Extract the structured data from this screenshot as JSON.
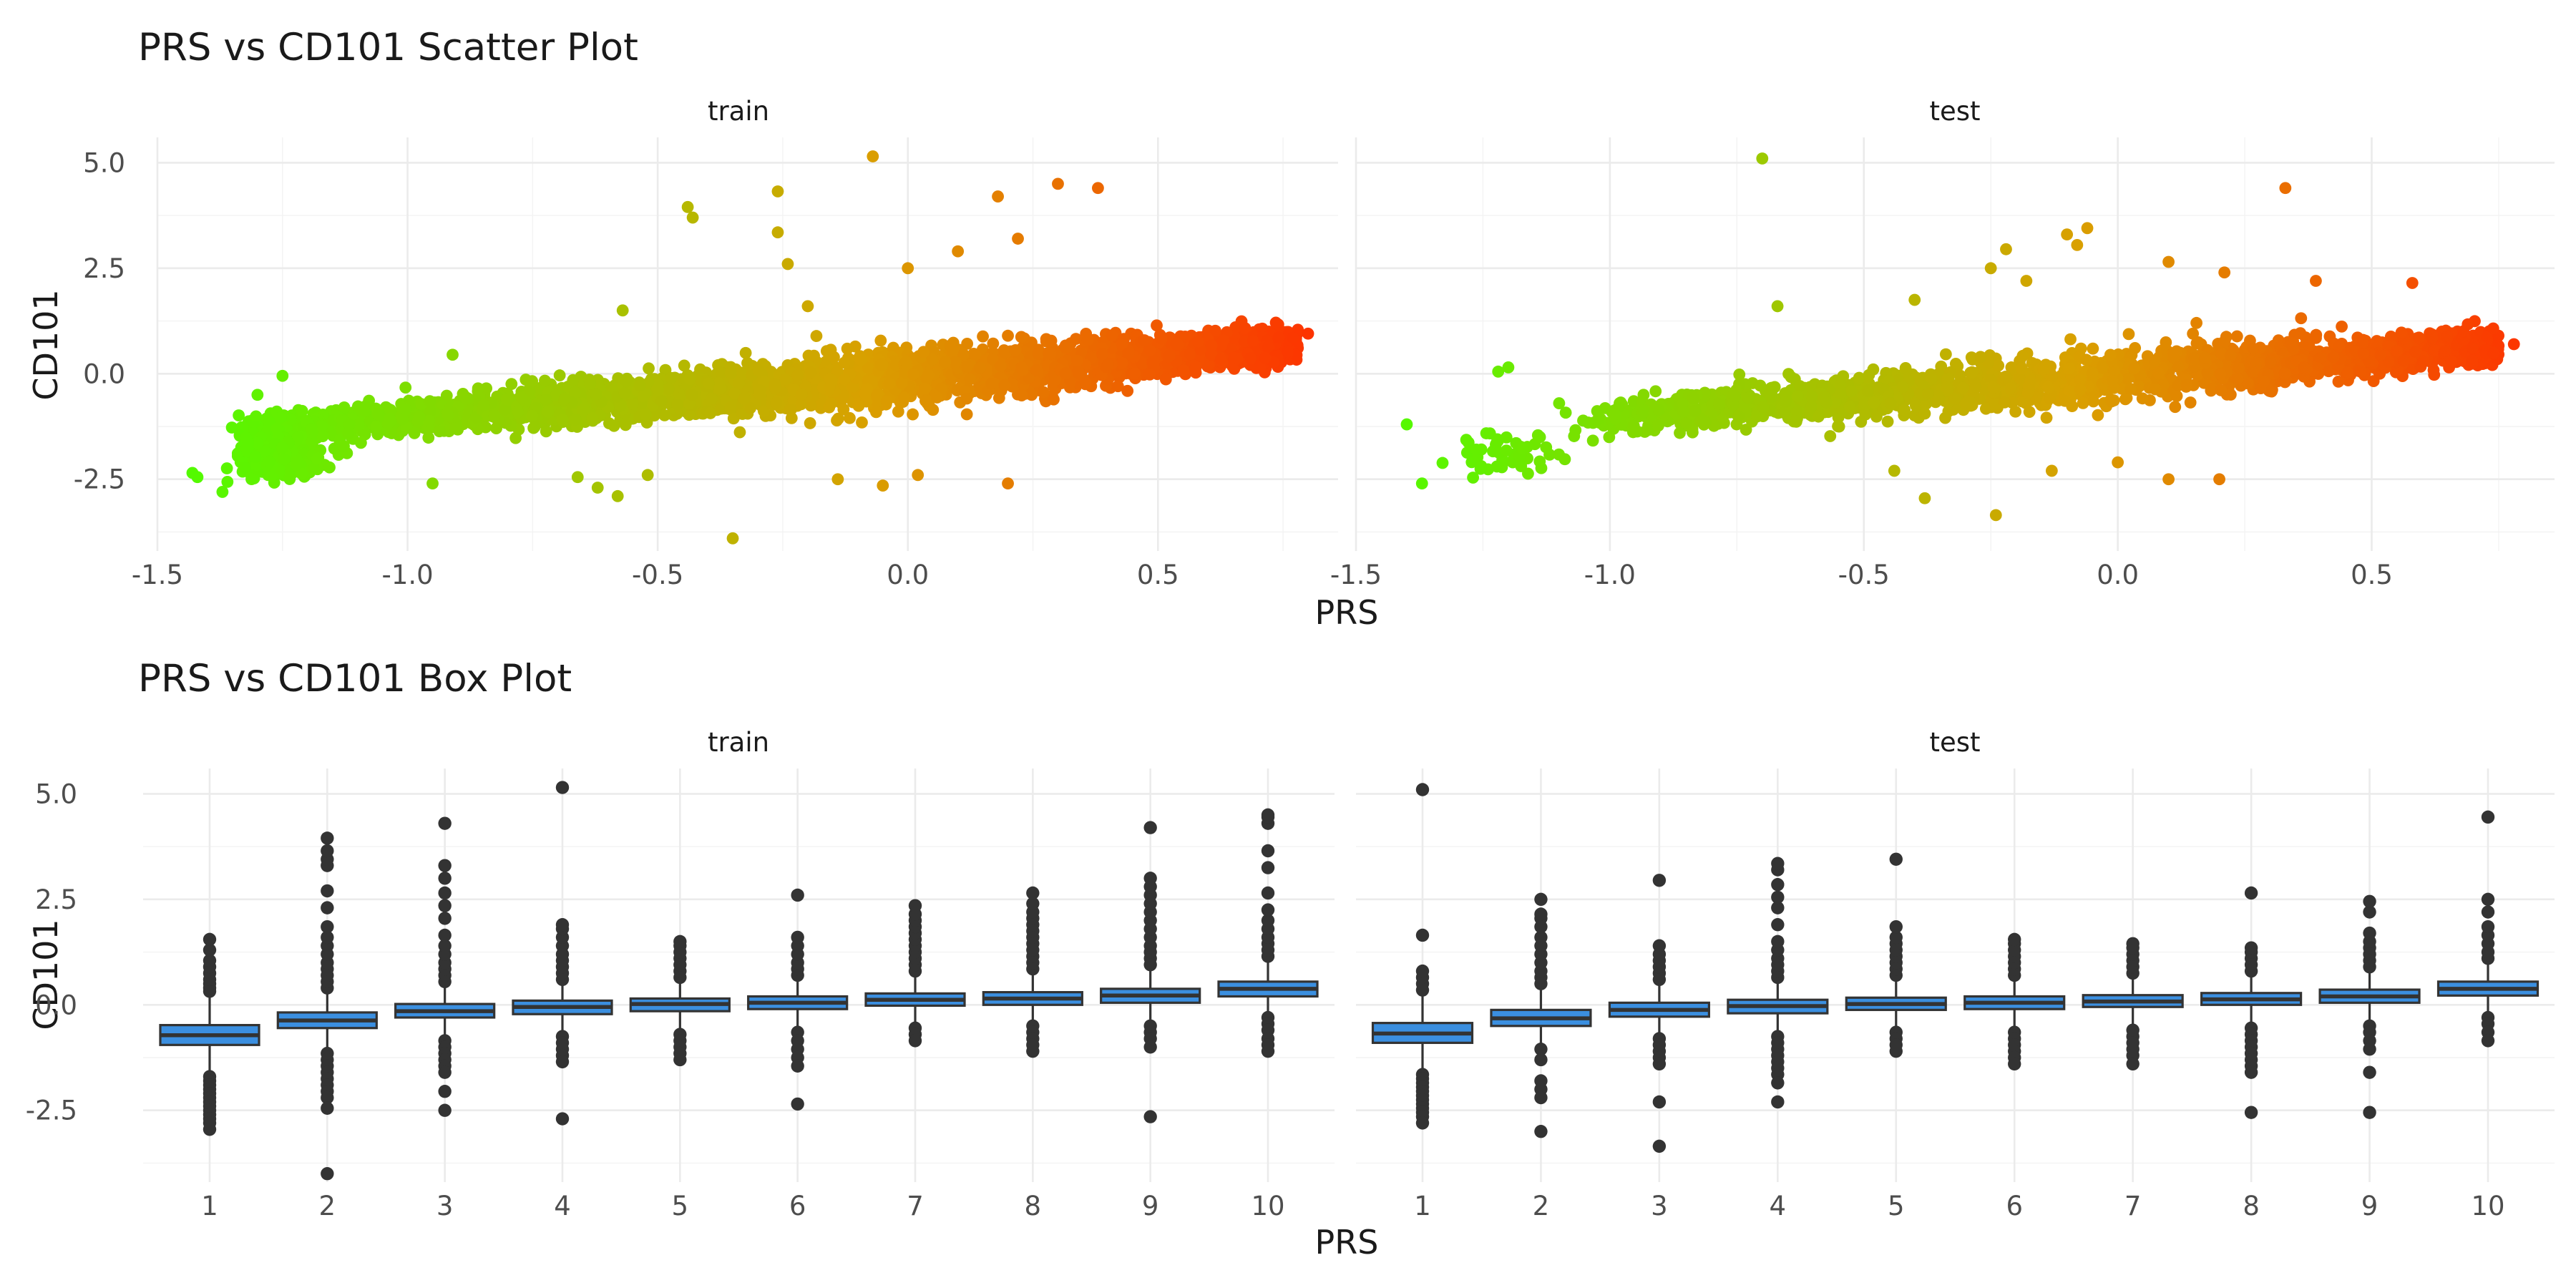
{
  "chart_data": [
    {
      "type": "scatter",
      "title": "PRS vs CD101 Scatter Plot",
      "xlabel": "PRS",
      "ylabel": "CD101",
      "xlim": [
        -1.5,
        0.86
      ],
      "ylim": [
        -4.2,
        5.6
      ],
      "x_ticks": [
        -1.5,
        -1.0,
        -0.5,
        0.0,
        0.5
      ],
      "x_tick_labels": [
        "-1.5",
        "-1.0",
        "-0.5",
        "0.0",
        "0.5"
      ],
      "y_ticks": [
        -2.5,
        0.0,
        2.5,
        5.0
      ],
      "y_tick_labels": [
        "-2.5",
        "0.0",
        "2.5",
        "5.0"
      ],
      "grid": true,
      "color_gradient": {
        "low": "#4cff00",
        "mid": "#d9a000",
        "high": "#ff2d00"
      },
      "panels": [
        {
          "name": "train",
          "trend": {
            "slope": 0.95,
            "intercept": -0.06
          },
          "dense_x_range": [
            -1.3,
            0.78
          ],
          "cluster": {
            "x": -1.25,
            "y": -1.95
          },
          "outliers": [
            {
              "x": -0.07,
              "y": 5.15
            },
            {
              "x": 0.3,
              "y": 4.5
            },
            {
              "x": 0.38,
              "y": 4.4
            },
            {
              "x": -0.26,
              "y": 4.32
            },
            {
              "x": 0.18,
              "y": 4.2
            },
            {
              "x": -0.44,
              "y": 3.95
            },
            {
              "x": -0.43,
              "y": 3.7
            },
            {
              "x": -0.26,
              "y": 3.35
            },
            {
              "x": -0.24,
              "y": 2.6
            },
            {
              "x": 0.0,
              "y": 2.5
            },
            {
              "x": 0.1,
              "y": 2.9
            },
            {
              "x": 0.22,
              "y": 3.2
            },
            {
              "x": -0.35,
              "y": -3.9
            },
            {
              "x": -0.58,
              "y": -2.9
            },
            {
              "x": -0.62,
              "y": -2.7
            },
            {
              "x": -0.52,
              "y": -2.4
            },
            {
              "x": -0.66,
              "y": -2.45
            },
            {
              "x": -0.05,
              "y": -2.65
            },
            {
              "x": 0.2,
              "y": -2.6
            },
            {
              "x": -0.95,
              "y": -2.6
            },
            {
              "x": -0.14,
              "y": -2.5
            },
            {
              "x": 0.02,
              "y": -2.4
            },
            {
              "x": -1.37,
              "y": -2.8
            },
            {
              "x": -1.42,
              "y": -2.45
            },
            {
              "x": -1.43,
              "y": -2.35
            },
            {
              "x": -1.25,
              "y": -0.05
            },
            {
              "x": -1.3,
              "y": -0.5
            },
            {
              "x": 0.8,
              "y": 0.95
            },
            {
              "x": 0.77,
              "y": 0.85
            },
            {
              "x": -0.91,
              "y": 0.45
            },
            {
              "x": -0.57,
              "y": 1.5
            },
            {
              "x": -0.2,
              "y": 1.6
            }
          ]
        },
        {
          "name": "test",
          "trend": {
            "slope": 0.95,
            "intercept": -0.06
          },
          "dense_x_range": [
            -1.0,
            0.75
          ],
          "cluster": {
            "x": -1.22,
            "y": -1.9
          },
          "outliers": [
            {
              "x": -0.7,
              "y": 5.1
            },
            {
              "x": 0.33,
              "y": 4.4
            },
            {
              "x": -0.06,
              "y": 3.45
            },
            {
              "x": -0.1,
              "y": 3.3
            },
            {
              "x": -0.08,
              "y": 3.05
            },
            {
              "x": -0.22,
              "y": 2.95
            },
            {
              "x": -0.25,
              "y": 2.5
            },
            {
              "x": 0.1,
              "y": 2.65
            },
            {
              "x": 0.21,
              "y": 2.4
            },
            {
              "x": 0.58,
              "y": 2.15
            },
            {
              "x": 0.39,
              "y": 2.2
            },
            {
              "x": -0.18,
              "y": 2.2
            },
            {
              "x": -0.4,
              "y": 1.75
            },
            {
              "x": -0.67,
              "y": 1.6
            },
            {
              "x": -0.24,
              "y": -3.35
            },
            {
              "x": -0.38,
              "y": -2.95
            },
            {
              "x": -0.44,
              "y": -2.3
            },
            {
              "x": 0.2,
              "y": -2.5
            },
            {
              "x": 0.1,
              "y": -2.5
            },
            {
              "x": 0.0,
              "y": -2.1
            },
            {
              "x": -0.13,
              "y": -2.3
            },
            {
              "x": -1.37,
              "y": -2.6
            },
            {
              "x": -1.4,
              "y": -1.2
            },
            {
              "x": -1.22,
              "y": 0.05
            },
            {
              "x": -1.2,
              "y": 0.15
            },
            {
              "x": -1.1,
              "y": -0.7
            },
            {
              "x": 0.78,
              "y": 0.7
            },
            {
              "x": 0.74,
              "y": 0.5
            }
          ]
        }
      ]
    },
    {
      "type": "box",
      "title": "PRS vs CD101 Box Plot",
      "xlabel": "PRS",
      "ylabel": "CD101",
      "categories": [
        "1",
        "2",
        "3",
        "4",
        "5",
        "6",
        "7",
        "8",
        "9",
        "10"
      ],
      "ylim": [
        -4.2,
        5.6
      ],
      "y_ticks": [
        -2.5,
        0.0,
        2.5,
        5.0
      ],
      "y_tick_labels": [
        "-2.5",
        "0.0",
        "2.5",
        "5.0"
      ],
      "grid": true,
      "box_fill": "#3b8fe0",
      "box_line": "#333333",
      "outlier_color": "#333333",
      "panels": [
        {
          "name": "train",
          "boxes": [
            {
              "q1": -0.95,
              "median": -0.72,
              "q3": -0.48,
              "whisker_low": -1.6,
              "whisker_high": 0.22,
              "outliers_high": [
                0.32,
                0.4,
                0.5,
                0.6,
                0.75,
                0.9,
                1.05,
                1.3,
                1.55
              ],
              "outliers_low": [
                -1.7,
                -1.8,
                -1.9,
                -2.0,
                -2.1,
                -2.2,
                -2.3,
                -2.4,
                -2.5,
                -2.6,
                -2.7,
                -2.8,
                -2.95
              ]
            },
            {
              "q1": -0.55,
              "median": -0.37,
              "q3": -0.18,
              "whisker_low": -1.05,
              "whisker_high": 0.3,
              "outliers_high": [
                0.4,
                0.55,
                0.7,
                0.85,
                1.0,
                1.2,
                1.4,
                1.6,
                1.85,
                2.3,
                2.7,
                3.3,
                3.45,
                3.65,
                3.95
              ],
              "outliers_low": [
                -1.15,
                -1.3,
                -1.45,
                -1.6,
                -1.75,
                -1.9,
                -2.05,
                -2.2,
                -2.45,
                -4.0
              ]
            },
            {
              "q1": -0.3,
              "median": -0.15,
              "q3": 0.02,
              "whisker_low": -0.75,
              "whisker_high": 0.45,
              "outliers_high": [
                0.55,
                0.7,
                0.85,
                1.0,
                1.2,
                1.4,
                1.65,
                2.05,
                2.35,
                2.65,
                3.0,
                3.3,
                4.3
              ],
              "outliers_low": [
                -0.85,
                -1.0,
                -1.15,
                -1.3,
                -1.45,
                -1.6,
                -2.05,
                -2.5
              ]
            },
            {
              "q1": -0.22,
              "median": -0.05,
              "q3": 0.1,
              "whisker_low": -0.65,
              "whisker_high": 0.5,
              "outliers_high": [
                0.6,
                0.75,
                0.9,
                1.05,
                1.2,
                1.4,
                1.6,
                1.8,
                1.9,
                5.15
              ],
              "outliers_low": [
                -0.75,
                -0.9,
                -1.05,
                -1.2,
                -1.35,
                -2.7
              ]
            },
            {
              "q1": -0.15,
              "median": 0.02,
              "q3": 0.15,
              "whisker_low": -0.58,
              "whisker_high": 0.55,
              "outliers_high": [
                0.65,
                0.8,
                0.95,
                1.1,
                1.25,
                1.4,
                1.5
              ],
              "outliers_low": [
                -0.7,
                -0.85,
                -1.0,
                -1.15,
                -1.3
              ]
            },
            {
              "q1": -0.1,
              "median": 0.05,
              "q3": 0.2,
              "whisker_low": -0.52,
              "whisker_high": 0.6,
              "outliers_high": [
                0.7,
                0.85,
                1.0,
                1.2,
                1.4,
                1.6,
                2.6
              ],
              "outliers_low": [
                -0.65,
                -0.85,
                -1.05,
                -1.25,
                -1.45,
                -2.35
              ]
            },
            {
              "q1": -0.02,
              "median": 0.12,
              "q3": 0.27,
              "whisker_low": -0.42,
              "whisker_high": 0.7,
              "outliers_high": [
                0.8,
                0.95,
                1.1,
                1.25,
                1.4,
                1.55,
                1.7,
                1.85,
                2.0,
                2.15,
                2.35
              ],
              "outliers_low": [
                -0.55,
                -0.7,
                -0.85
              ]
            },
            {
              "q1": 0.0,
              "median": 0.15,
              "q3": 0.3,
              "whisker_low": -0.4,
              "whisker_high": 0.75,
              "outliers_high": [
                0.85,
                1.0,
                1.15,
                1.3,
                1.45,
                1.6,
                1.75,
                1.9,
                2.05,
                2.2,
                2.4,
                2.65
              ],
              "outliers_low": [
                -0.5,
                -0.65,
                -0.8,
                -0.95,
                -1.1
              ]
            },
            {
              "q1": 0.05,
              "median": 0.22,
              "q3": 0.38,
              "whisker_low": -0.35,
              "whisker_high": 0.85,
              "outliers_high": [
                0.95,
                1.1,
                1.25,
                1.4,
                1.6,
                1.8,
                2.0,
                2.2,
                2.4,
                2.6,
                2.8,
                3.0,
                4.2
              ],
              "outliers_low": [
                -0.5,
                -0.65,
                -0.8,
                -1.0,
                -2.65
              ]
            },
            {
              "q1": 0.2,
              "median": 0.38,
              "q3": 0.55,
              "whisker_low": -0.2,
              "whisker_high": 1.0,
              "outliers_high": [
                1.15,
                1.3,
                1.45,
                1.6,
                1.8,
                2.0,
                2.25,
                2.65,
                3.25,
                3.65,
                4.3,
                4.45,
                4.5
              ],
              "outliers_low": [
                -0.3,
                -0.45,
                -0.6,
                -0.8,
                -0.95,
                -1.1
              ]
            }
          ]
        },
        {
          "name": "test",
          "boxes": [
            {
              "q1": -0.9,
              "median": -0.68,
              "q3": -0.43,
              "whisker_low": -1.55,
              "whisker_high": 0.25,
              "outliers_high": [
                0.35,
                0.5,
                0.65,
                0.8,
                1.65,
                5.1
              ],
              "outliers_low": [
                -1.65,
                -1.75,
                -1.85,
                -1.95,
                -2.05,
                -2.15,
                -2.25,
                -2.35,
                -2.45,
                -2.55,
                -2.65,
                -2.8
              ]
            },
            {
              "q1": -0.5,
              "median": -0.32,
              "q3": -0.12,
              "whisker_low": -0.95,
              "whisker_high": 0.4,
              "outliers_high": [
                0.5,
                0.65,
                0.8,
                1.0,
                1.2,
                1.4,
                1.6,
                1.85,
                2.05,
                2.15,
                2.5
              ],
              "outliers_low": [
                -1.05,
                -1.3,
                -1.8,
                -2.0,
                -2.2,
                -3.0
              ]
            },
            {
              "q1": -0.28,
              "median": -0.12,
              "q3": 0.05,
              "whisker_low": -0.7,
              "whisker_high": 0.5,
              "outliers_high": [
                0.6,
                0.75,
                0.9,
                1.05,
                1.2,
                1.4,
                2.95
              ],
              "outliers_low": [
                -0.8,
                -0.95,
                -1.1,
                -1.25,
                -1.4,
                -2.3,
                -3.35
              ]
            },
            {
              "q1": -0.2,
              "median": -0.03,
              "q3": 0.12,
              "whisker_low": -0.62,
              "whisker_high": 0.55,
              "outliers_high": [
                0.65,
                0.8,
                0.95,
                1.1,
                1.3,
                1.5,
                1.9,
                2.3,
                2.55,
                2.85,
                3.2,
                3.35
              ],
              "outliers_low": [
                -0.75,
                -0.9,
                -1.05,
                -1.2,
                -1.35,
                -1.5,
                -1.65,
                -1.85,
                -2.3
              ]
            },
            {
              "q1": -0.12,
              "median": 0.02,
              "q3": 0.17,
              "whisker_low": -0.55,
              "whisker_high": 0.6,
              "outliers_high": [
                0.7,
                0.85,
                1.0,
                1.15,
                1.3,
                1.45,
                1.6,
                1.85,
                3.45
              ],
              "outliers_low": [
                -0.65,
                -0.8,
                -0.95,
                -1.1
              ]
            },
            {
              "q1": -0.1,
              "median": 0.05,
              "q3": 0.2,
              "whisker_low": -0.52,
              "whisker_high": 0.6,
              "outliers_high": [
                0.7,
                0.85,
                1.0,
                1.15,
                1.3,
                1.45,
                1.55
              ],
              "outliers_low": [
                -0.65,
                -0.8,
                -0.95,
                -1.1,
                -1.25,
                -1.4
              ]
            },
            {
              "q1": -0.05,
              "median": 0.08,
              "q3": 0.23,
              "whisker_low": -0.5,
              "whisker_high": 0.65,
              "outliers_high": [
                0.75,
                0.9,
                1.05,
                1.2,
                1.35,
                1.45
              ],
              "outliers_low": [
                -0.6,
                -0.75,
                -0.9,
                -1.05,
                -1.2,
                -1.4
              ]
            },
            {
              "q1": 0.0,
              "median": 0.13,
              "q3": 0.28,
              "whisker_low": -0.42,
              "whisker_high": 0.7,
              "outliers_high": [
                0.8,
                0.95,
                1.1,
                1.25,
                1.35,
                2.65
              ],
              "outliers_low": [
                -0.55,
                -0.7,
                -0.85,
                -1.0,
                -1.15,
                -1.3,
                -1.45,
                -1.6,
                -2.55
              ]
            },
            {
              "q1": 0.05,
              "median": 0.2,
              "q3": 0.36,
              "whisker_low": -0.37,
              "whisker_high": 0.8,
              "outliers_high": [
                0.9,
                1.05,
                1.2,
                1.35,
                1.5,
                1.7,
                2.2,
                2.45
              ],
              "outliers_low": [
                -0.5,
                -0.65,
                -0.85,
                -1.05,
                -1.6,
                -2.55
              ]
            },
            {
              "q1": 0.22,
              "median": 0.38,
              "q3": 0.55,
              "whisker_low": -0.18,
              "whisker_high": 1.0,
              "outliers_high": [
                1.1,
                1.25,
                1.45,
                1.65,
                1.85,
                2.2,
                2.5,
                4.45
              ],
              "outliers_low": [
                -0.3,
                -0.45,
                -0.65,
                -0.85
              ]
            }
          ]
        }
      ]
    }
  ]
}
